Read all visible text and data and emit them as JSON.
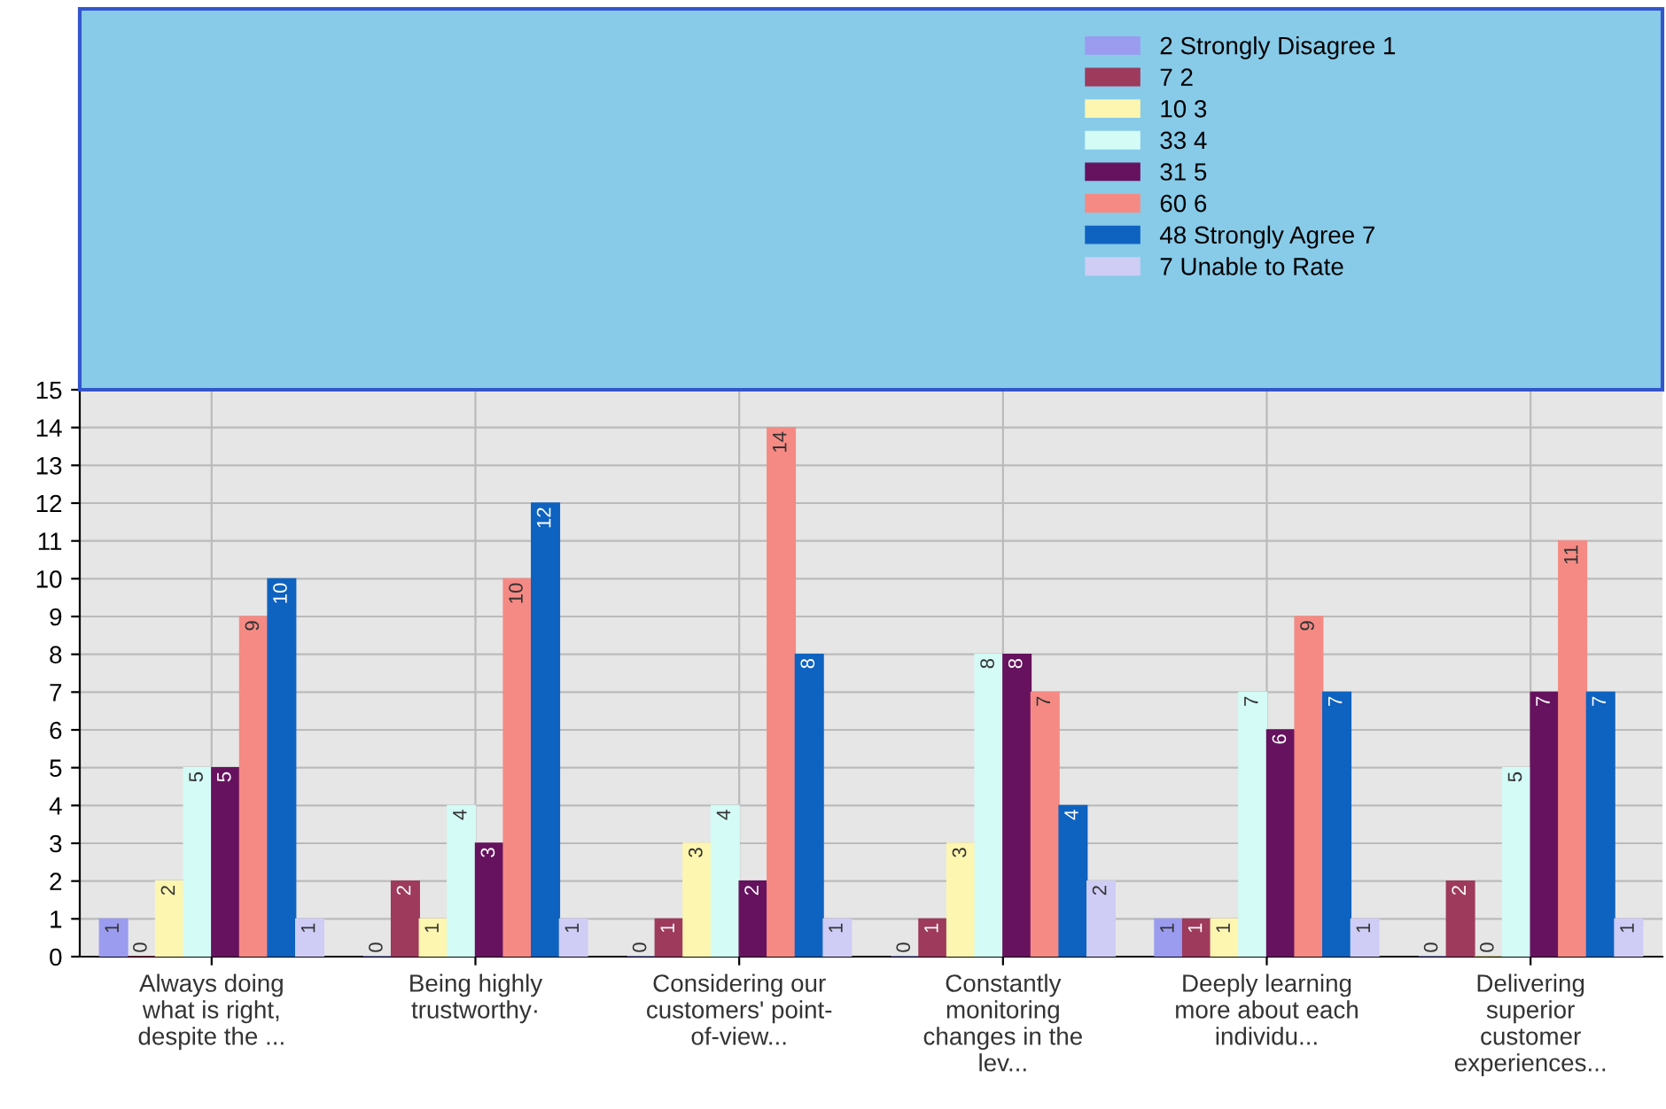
{
  "chart_data": {
    "type": "bar",
    "categories": [
      "Always doing\nwhat is right,\ndespite the ...",
      "Being highly\ntrustworthy·",
      "Considering our\ncustomers' point-\nof-view...",
      "Constantly\nmonitoring\nchanges in the\nlev...",
      "Deeply learning\nmore about each\nindividu...",
      "Delivering\nsuperior\ncustomer\nexperiences..."
    ],
    "series": [
      {
        "name": "2 Strongly Disagree 1",
        "color": "#9b9bf0",
        "values": [
          1,
          0,
          0,
          0,
          1,
          0
        ]
      },
      {
        "name": "7 2",
        "color": "#9e3a5c",
        "values": [
          0,
          2,
          1,
          1,
          1,
          2
        ]
      },
      {
        "name": "10 3",
        "color": "#fdf6b0",
        "values": [
          2,
          1,
          3,
          3,
          1,
          0
        ]
      },
      {
        "name": "33 4",
        "color": "#d4fbf6",
        "values": [
          5,
          4,
          4,
          8,
          7,
          5
        ]
      },
      {
        "name": "31 5",
        "color": "#66125e",
        "values": [
          5,
          3,
          2,
          8,
          6,
          7
        ]
      },
      {
        "name": "60 6",
        "color": "#f58a84",
        "values": [
          9,
          10,
          14,
          7,
          9,
          11
        ]
      },
      {
        "name": "48 Strongly Agree 7",
        "color": "#0e62c0",
        "values": [
          10,
          12,
          8,
          4,
          7,
          7
        ]
      },
      {
        "name": "7 Unable to Rate",
        "color": "#cfcdf5",
        "values": [
          1,
          1,
          1,
          2,
          1,
          1
        ]
      }
    ],
    "ylim": [
      0,
      15
    ],
    "yticks": [
      0,
      1,
      2,
      3,
      4,
      5,
      6,
      7,
      8,
      9,
      10,
      11,
      12,
      13,
      14,
      15
    ],
    "grid": true,
    "legend": "top",
    "data_labels": true
  }
}
